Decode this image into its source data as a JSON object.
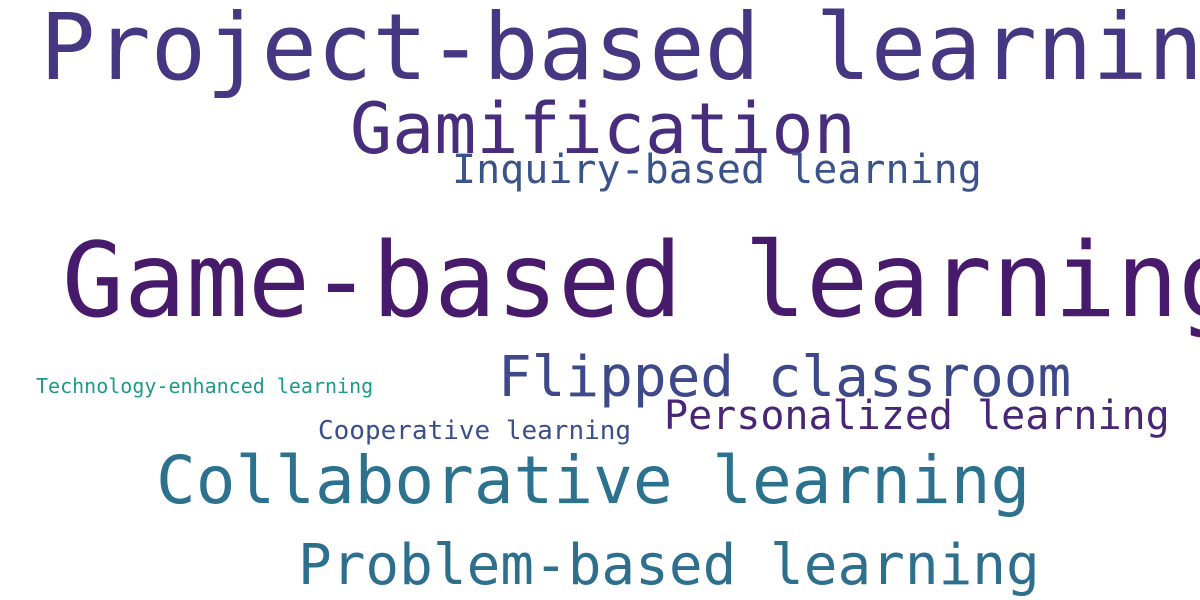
{
  "word_cloud": {
    "words": [
      {
        "text": "Project-based learning",
        "color": "#453781"
      },
      {
        "text": "Gamification",
        "color": "#472d7b"
      },
      {
        "text": "Inquiry-based learning",
        "color": "#3b528b"
      },
      {
        "text": "Game-based learning",
        "color": "#481a6c"
      },
      {
        "text": "Flipped classroom",
        "color": "#3e4989"
      },
      {
        "text": "Technology-enhanced learning",
        "color": "#1f9a8a"
      },
      {
        "text": "Personalized learning",
        "color": "#482576"
      },
      {
        "text": "Cooperative learning",
        "color": "#3b4f8a"
      },
      {
        "text": "Collaborative learning",
        "color": "#2c728e"
      },
      {
        "text": "Problem-based learning",
        "color": "#2e6f8e"
      }
    ]
  }
}
